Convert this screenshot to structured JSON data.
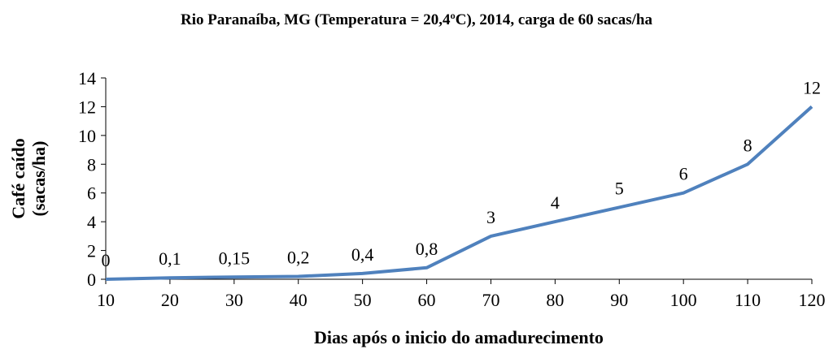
{
  "chart_data": {
    "type": "line",
    "title": "Rio Paranaíba, MG (Temperatura = 20,4ºC), 2014, carga de 60 sacas/ha",
    "xlabel": "Dias após o inicio do amadurecimento",
    "ylabel_lines": [
      "Café caído",
      "(sacas/ha)"
    ],
    "x": [
      10,
      20,
      30,
      40,
      50,
      60,
      70,
      80,
      90,
      100,
      110,
      120
    ],
    "y": [
      0,
      0.1,
      0.15,
      0.2,
      0.4,
      0.8,
      3,
      4,
      5,
      6,
      8,
      12
    ],
    "data_labels": [
      "0",
      "0,1",
      "0,15",
      "0,2",
      "0,4",
      "0,8",
      "3",
      "4",
      "5",
      "6",
      "8",
      "12"
    ],
    "xlim": [
      10,
      120
    ],
    "ylim": [
      0,
      14
    ],
    "x_ticks": [
      10,
      20,
      30,
      40,
      50,
      60,
      70,
      80,
      90,
      100,
      110,
      120
    ],
    "y_ticks": [
      0,
      2,
      4,
      6,
      8,
      10,
      12,
      14
    ],
    "line_color": "#4F81BD",
    "grid": false,
    "legend": "none"
  }
}
